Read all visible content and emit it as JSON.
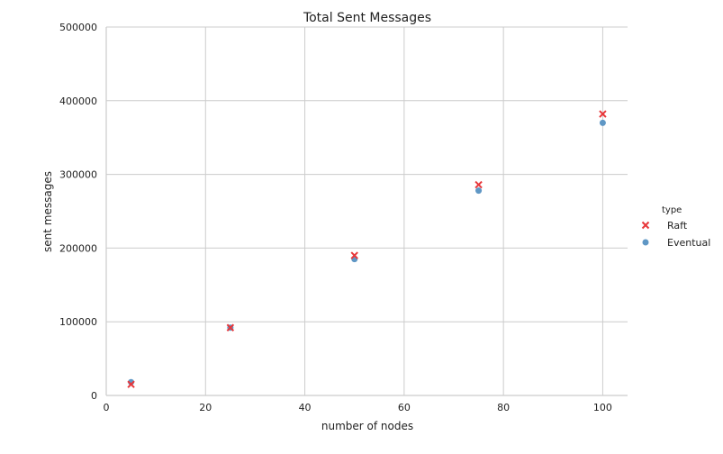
{
  "chart_data": {
    "type": "scatter",
    "title": "Total Sent Messages",
    "xlabel": "number of nodes",
    "ylabel": "sent messages",
    "xlim": [
      0,
      105
    ],
    "ylim": [
      0,
      500000
    ],
    "xticks": [
      0,
      20,
      40,
      60,
      80,
      100
    ],
    "yticks": [
      0,
      100000,
      200000,
      300000,
      400000,
      500000
    ],
    "grid": true,
    "legend": {
      "title": "type",
      "placement": "right"
    },
    "series": [
      {
        "name": "Raft",
        "marker": "x",
        "color": "#e8383b",
        "x": [
          5,
          25,
          50,
          75,
          100
        ],
        "y": [
          15000,
          92000,
          190000,
          286000,
          382000
        ]
      },
      {
        "name": "Eventual",
        "marker": "circle",
        "color": "#5f97c5",
        "x": [
          5,
          25,
          50,
          75,
          100
        ],
        "y": [
          18000,
          92000,
          185000,
          278000,
          370000
        ]
      }
    ]
  }
}
